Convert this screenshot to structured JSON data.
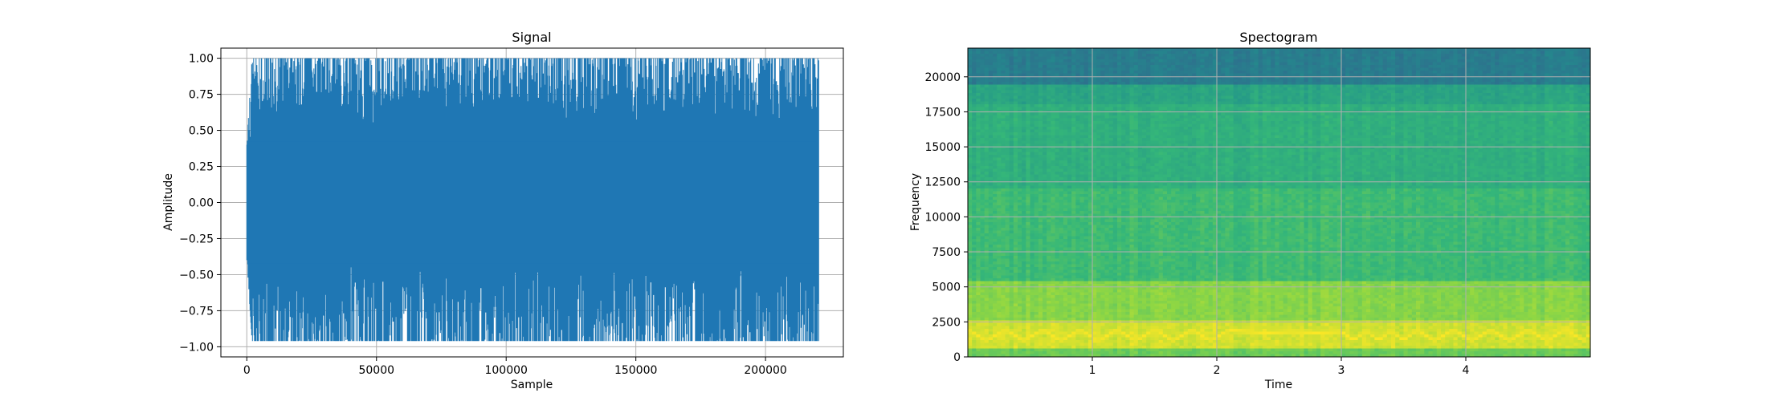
{
  "chart_data": [
    {
      "type": "line",
      "title": "Signal",
      "xlabel": "Sample",
      "ylabel": "Amplitude",
      "xlim": [
        -10000,
        230000
      ],
      "ylim": [
        -1.07,
        1.07
      ],
      "grid": true,
      "x_ticks": [
        0,
        50000,
        100000,
        150000,
        200000
      ],
      "y_ticks": [
        -1.0,
        -0.75,
        -0.5,
        -0.25,
        0.0,
        0.25,
        0.5,
        0.75,
        1.0
      ],
      "x_tick_labels": [
        "0",
        "50000",
        "100000",
        "150000",
        "200000"
      ],
      "y_tick_labels": [
        "−1.00",
        "−0.75",
        "−0.50",
        "−0.25",
        "0.00",
        "0.25",
        "0.50",
        "0.75",
        "1.00"
      ],
      "series": [
        {
          "color": "#1f77b4",
          "x": [
            0,
            220500
          ],
          "description_sample_range": [
            0,
            220500
          ],
          "envelope": {
            "x": [
              0,
              2000,
              10000,
              20000,
              30000,
              40000,
              50000,
              60000,
              70000,
              80000,
              90000,
              100000,
              110000,
              120000,
              130000,
              140000,
              150000,
              160000,
              170000,
              180000,
              190000,
              200000,
              210000,
              215000,
              220500
            ],
            "upper": [
              0.4,
              1.0,
              1.0,
              1.0,
              1.0,
              1.0,
              1.0,
              1.0,
              1.0,
              1.0,
              1.0,
              1.0,
              1.0,
              1.0,
              1.0,
              1.0,
              1.0,
              1.0,
              1.0,
              1.0,
              1.0,
              1.0,
              1.0,
              1.0,
              1.0
            ],
            "lower": [
              -0.4,
              -0.96,
              -0.96,
              -0.96,
              -0.96,
              -0.96,
              -0.96,
              -0.96,
              -0.96,
              -0.96,
              -0.96,
              -0.96,
              -0.96,
              -0.96,
              -0.96,
              -0.96,
              -0.96,
              -0.96,
              -0.96,
              -0.96,
              -0.96,
              -0.96,
              -0.96,
              -0.96,
              -0.96
            ]
          }
        }
      ]
    },
    {
      "type": "heatmap",
      "title": "Spectogram",
      "xlabel": "Time",
      "ylabel": "Frequency",
      "xlim": [
        0,
        5
      ],
      "ylim": [
        0,
        22050
      ],
      "grid": true,
      "x_ticks": [
        1,
        2,
        3,
        4
      ],
      "y_ticks": [
        0,
        2500,
        5000,
        7500,
        10000,
        12500,
        15000,
        17500,
        20000
      ],
      "x_tick_labels": [
        "1",
        "2",
        "3",
        "4"
      ],
      "y_tick_labels": [
        "0",
        "2500",
        "5000",
        "7500",
        "10000",
        "12500",
        "15000",
        "17500",
        "20000"
      ],
      "colormap": [
        "#440154",
        "#31688e",
        "#21918c",
        "#35b779",
        "#90d743",
        "#fde725"
      ],
      "bands": [
        {
          "freq_range": [
            0,
            600
          ],
          "level": 0.72
        },
        {
          "freq_range": [
            600,
            2600
          ],
          "level": 0.92
        },
        {
          "freq_range": [
            2600,
            5500
          ],
          "level": 0.78
        },
        {
          "freq_range": [
            5500,
            12000
          ],
          "level": 0.62
        },
        {
          "freq_range": [
            12000,
            18000
          ],
          "level": 0.56
        },
        {
          "freq_range": [
            18000,
            19500
          ],
          "level": 0.5
        },
        {
          "freq_range": [
            19500,
            22050
          ],
          "level": 0.3
        }
      ],
      "peak_track": {
        "t": [
          0.0,
          0.15,
          0.3,
          0.45,
          0.6,
          0.75,
          0.9,
          1.05,
          1.2,
          1.35,
          1.5,
          1.65,
          1.8,
          1.95,
          2.1,
          2.25,
          2.4,
          2.6,
          2.8,
          3.0,
          3.1,
          3.2,
          3.3,
          3.4,
          3.5,
          3.6,
          3.75,
          3.9,
          4.05,
          4.2,
          4.35,
          4.5,
          4.65,
          4.8,
          4.95,
          5.0
        ],
        "freq": [
          1900,
          1200,
          1900,
          1200,
          1900,
          1200,
          1900,
          1200,
          1900,
          1200,
          1900,
          1200,
          1900,
          1200,
          1900,
          1800,
          1700,
          1800,
          1700,
          1800,
          1200,
          1900,
          1200,
          1900,
          1200,
          1900,
          1200,
          1900,
          1200,
          1900,
          1200,
          1900,
          1200,
          1900,
          1200,
          1700
        ]
      }
    }
  ]
}
